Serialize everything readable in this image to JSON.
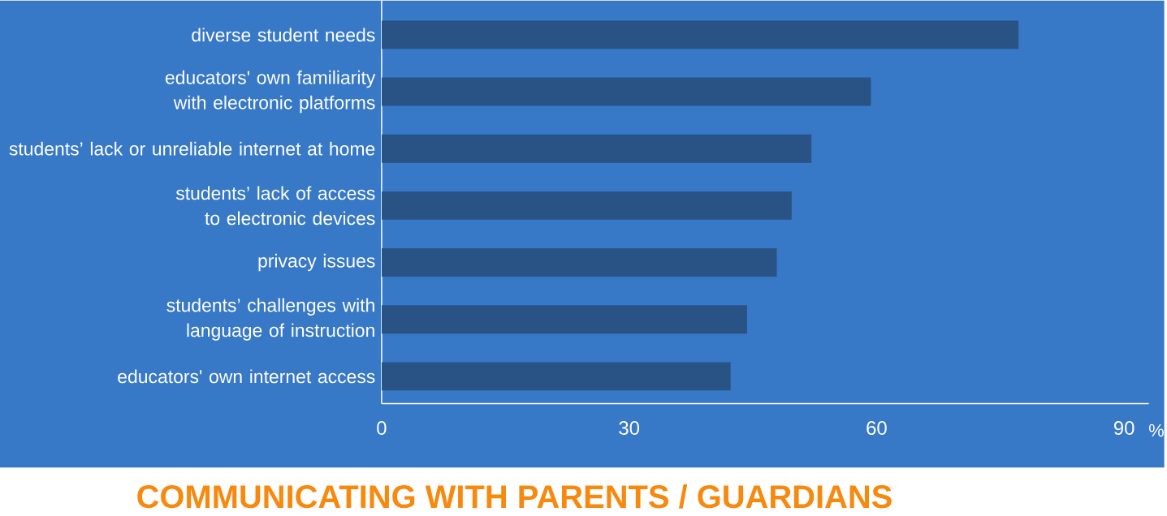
{
  "chart_data": {
    "type": "bar",
    "orientation": "horizontal",
    "categories": [
      "diverse student needs",
      "educators' own familiarity with electronic platforms",
      "students’ lack or unreliable internet at home",
      "students’ lack of access to electronic devices",
      "privacy issues",
      "students’ challenges with language of instruction",
      "educators' own internet access"
    ],
    "values": [
      77.2,
      59.3,
      52.1,
      49.7,
      47.9,
      44.3,
      42.3
    ],
    "color": "#285384",
    "xlim": [
      0,
      93
    ],
    "xticks": [
      0,
      30,
      60,
      90
    ],
    "xlabel": "%",
    "annotations": [
      "COMMUNICATING WITH PARENTS / GUARDIANS"
    ]
  }
}
